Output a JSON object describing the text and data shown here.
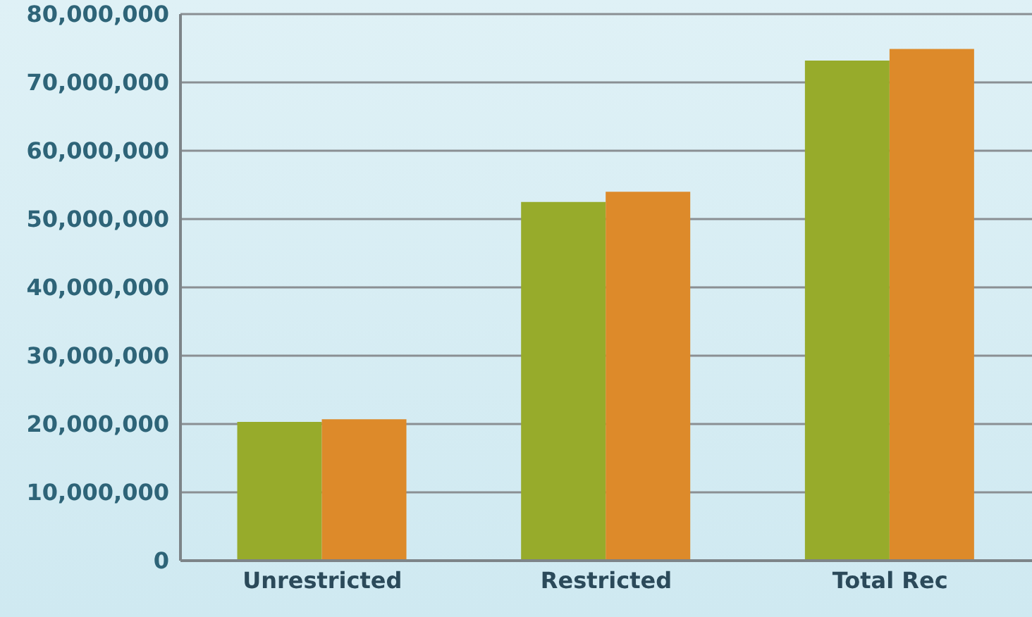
{
  "chart_data": {
    "type": "bar",
    "categories": [
      "Unrestricted",
      "Restricted",
      "Total Rec"
    ],
    "series": [
      {
        "color": "#97ab2b",
        "values": [
          20300000,
          52500000,
          73200000
        ]
      },
      {
        "color": "#dd8a2a",
        "values": [
          20700000,
          54000000,
          74900000
        ]
      }
    ],
    "ylim": [
      0,
      80000000
    ],
    "yticks": [
      0,
      {
        "value": 10000000,
        "label": "10,000,000"
      },
      {
        "value": 20000000,
        "label": "20,000,000"
      },
      {
        "value": 30000000,
        "label": "30,000,000"
      },
      {
        "value": 40000000,
        "label": "40,000,000"
      },
      {
        "value": 50000000,
        "label": "50,000,000"
      },
      {
        "value": 60000000,
        "label": "60,000,000"
      },
      {
        "value": 70000000,
        "label": "70,000,000"
      },
      {
        "value": 80000000,
        "label": "80,000,000"
      }
    ],
    "grid": "y"
  }
}
